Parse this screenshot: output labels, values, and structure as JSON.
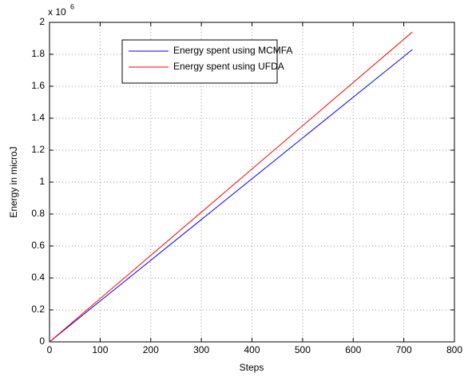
{
  "chart_data": {
    "type": "line",
    "xlabel": "Steps",
    "ylabel": "Energy in microJ",
    "y_scale_base": "x 10",
    "y_scale_exponent": "6",
    "x": [
      0,
      717
    ],
    "series": [
      {
        "name": "Energy spent using MCMFA",
        "color": "#0000ff",
        "values": [
          0,
          1.83
        ]
      },
      {
        "name": "Energy spent using UFDA",
        "color": "#ff0000",
        "values": [
          0,
          1.94
        ]
      }
    ],
    "xlim": [
      0,
      800
    ],
    "xticks": [
      0,
      100,
      200,
      300,
      400,
      500,
      600,
      700,
      800
    ],
    "ylim": [
      0,
      2
    ],
    "yticks": [
      0,
      0.2,
      0.4,
      0.6,
      0.8,
      1,
      1.2,
      1.4,
      1.6,
      1.8,
      2
    ],
    "grid": true,
    "legend": "north"
  }
}
